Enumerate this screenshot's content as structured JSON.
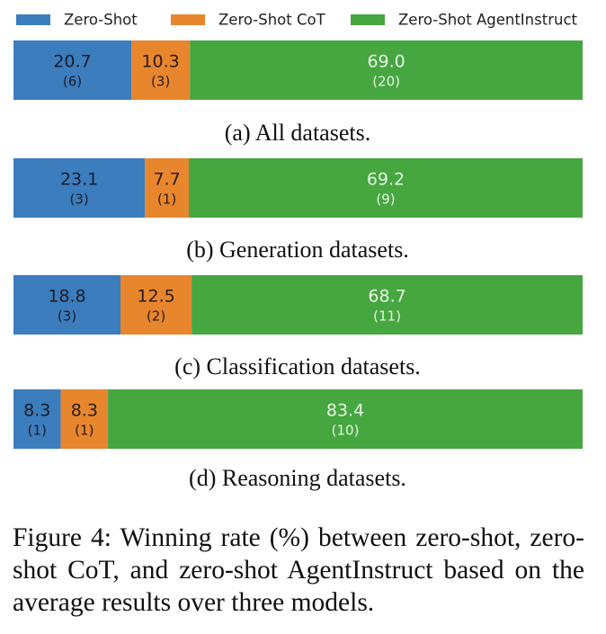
{
  "chart_data": {
    "type": "stacked-bar-h",
    "categories": [
      "(a) All datasets.",
      "(b) Generation datasets.",
      "(c) Classification datasets.",
      "(d) Reasoning datasets."
    ],
    "xlim": [
      0,
      100
    ],
    "series": [
      {
        "name": "Zero-Shot",
        "color": "#3b7dbd",
        "text_color": "#1c1c2a",
        "values": [
          20.7,
          23.1,
          18.8,
          8.3
        ],
        "counts": [
          6,
          3,
          3,
          1
        ],
        "count_labels": [
          "(6)",
          "(3)",
          "(3)",
          "(1)"
        ]
      },
      {
        "name": "Zero-Shot CoT",
        "color": "#e8862e",
        "text_color": "#2a1c10",
        "values": [
          10.3,
          7.7,
          12.5,
          8.3
        ],
        "counts": [
          3,
          1,
          2,
          1
        ],
        "count_labels": [
          "(3)",
          "(1)",
          "(2)",
          "(1)"
        ]
      },
      {
        "name": "Zero-Shot AgentInstruct",
        "color": "#46a63f",
        "text_color": "#e6f4e4",
        "values": [
          69.0,
          69.2,
          68.7,
          83.4
        ],
        "value_labels": [
          "69.0",
          "69.2",
          "68.7",
          "83.4"
        ],
        "counts": [
          20,
          9,
          11,
          10
        ],
        "count_labels": [
          "(20)",
          "(9)",
          "(11)",
          "(10)"
        ]
      }
    ]
  },
  "caption": "Figure 4: Winning rate (%) between zero-shot, zero-shot CoT, and zero-shot AgentInstruct based on the average results over three models."
}
